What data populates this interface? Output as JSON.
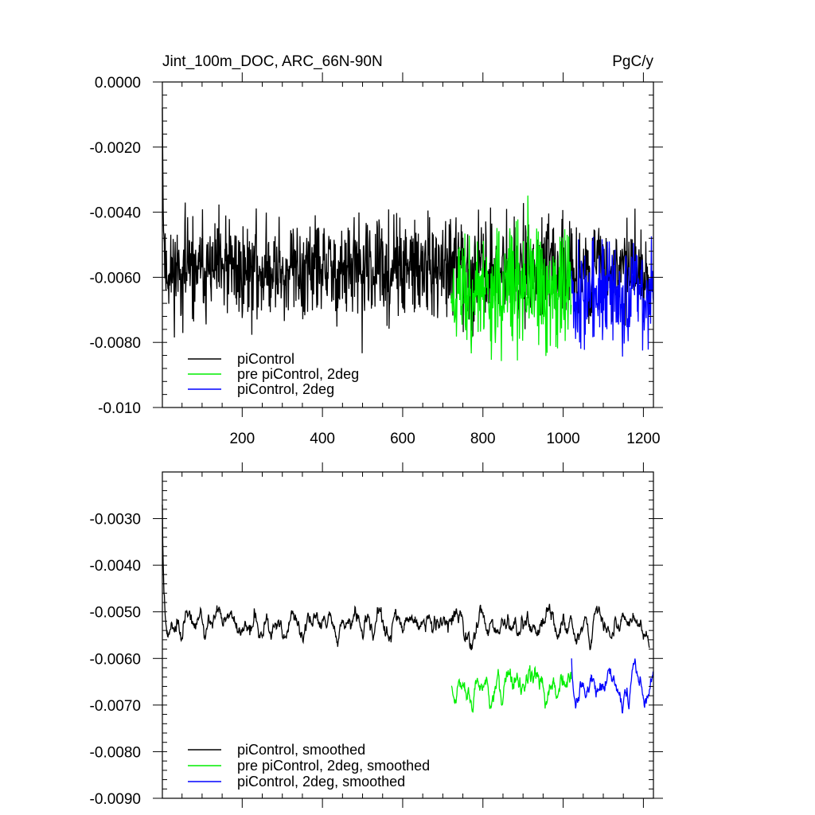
{
  "chart_data": [
    {
      "type": "line",
      "title_left": "Jint_100m_DOC, ARC_66N-90N",
      "title_right": "PgC/y",
      "xlabel": "",
      "ylabel": "",
      "xlim": [
        1,
        1225
      ],
      "ylim": [
        -0.01,
        0.0
      ],
      "xticks": [
        200,
        400,
        600,
        800,
        1000,
        1200
      ],
      "xtick_labels": [
        "200",
        "400",
        "600",
        "800",
        "1000",
        "1200"
      ],
      "yticks": [
        0.0,
        -0.002,
        -0.004,
        -0.006,
        -0.008,
        -0.01
      ],
      "ytick_labels": [
        "0.0000",
        "-0.0020",
        "-0.0040",
        "-0.0060",
        "-0.0080",
        "-0.010"
      ],
      "legend": "bottom-left",
      "series": [
        {
          "name": "piControl",
          "color": "#000000",
          "x_range": [
            1,
            1215
          ],
          "mean": -0.0058,
          "noise": 0.00095,
          "start_value": -0.0008,
          "seed": 11,
          "smoothed": false
        },
        {
          "name": "pre piControl, 2deg",
          "color": "#00ee00",
          "x_range": [
            721,
            1020
          ],
          "mean": -0.0064,
          "noise": 0.0012,
          "start_value": -0.0068,
          "seed": 23,
          "smoothed": false
        },
        {
          "name": "piControl, 2deg",
          "color": "#0000ff",
          "x_range": [
            1021,
            1225
          ],
          "mean": -0.0065,
          "noise": 0.001,
          "start_value": -0.0058,
          "seed": 37,
          "smoothed": false
        }
      ]
    },
    {
      "type": "line",
      "xlim": [
        1,
        1225
      ],
      "ylim": [
        -0.009,
        -0.002
      ],
      "xticks": [
        200,
        400,
        600,
        800,
        1000,
        1200
      ],
      "xtick_labels": [],
      "yticks": [
        -0.003,
        -0.004,
        -0.005,
        -0.006,
        -0.007,
        -0.008,
        -0.009
      ],
      "ytick_labels": [
        "-0.0030",
        "-0.0040",
        "-0.0050",
        "-0.0060",
        "-0.0070",
        "-0.0080",
        "-0.0090"
      ],
      "legend": "bottom-left",
      "series": [
        {
          "name": "piControl, smoothed",
          "color": "#000000",
          "x_range": [
            1,
            1215
          ],
          "mean": -0.0053,
          "noise": 0.0007,
          "start_value": -0.0027,
          "seed": 11,
          "smoothed": true
        },
        {
          "name": "pre piControl, 2deg, smoothed",
          "color": "#00ee00",
          "x_range": [
            721,
            1020
          ],
          "mean": -0.0066,
          "noise": 0.0009,
          "start_value": -0.0066,
          "seed": 23,
          "smoothed": true
        },
        {
          "name": "piControl, 2deg, smoothed",
          "color": "#0000ff",
          "x_range": [
            1021,
            1225
          ],
          "mean": -0.0066,
          "noise": 0.0008,
          "start_value": -0.006,
          "seed": 37,
          "smoothed": true
        }
      ]
    }
  ]
}
